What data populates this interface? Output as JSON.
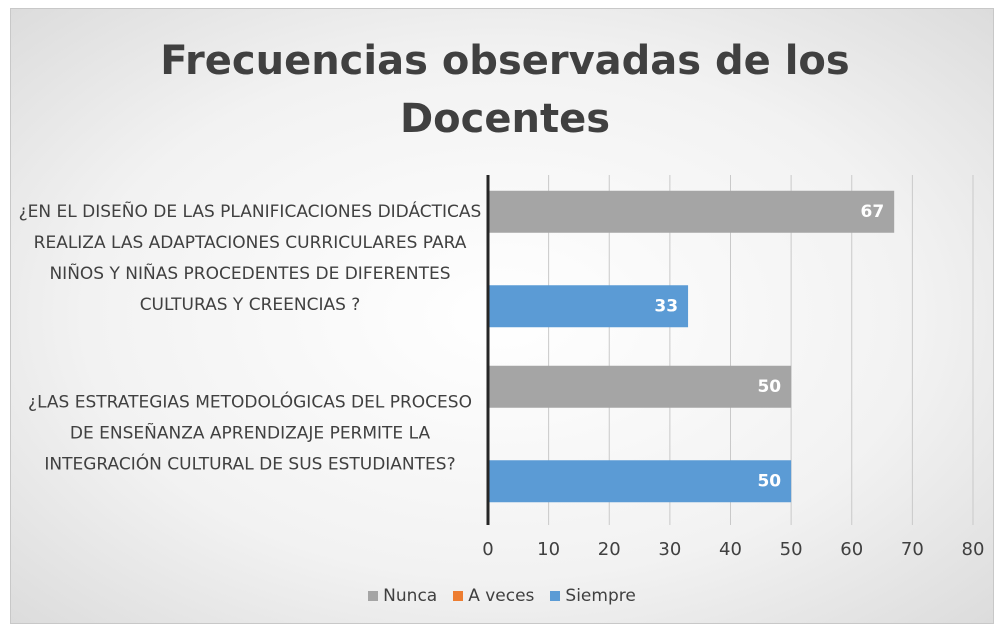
{
  "chart_data": {
    "type": "hbar",
    "title": "Frecuencias observadas de los Docentes",
    "categories": [
      "¿EN EL DISEÑO DE LAS PLANIFICACIONES DIDÁCTICAS REALIZA LAS ADAPTACIONES CURRICULARES PARA NIÑOS Y NIÑAS PROCEDENTES DE DIFERENTES CULTURAS Y CREENCIAS ?",
      "¿LAS ESTRATEGIAS METODOLÓGICAS DEL PROCESO DE ENSEÑANZA APRENDIZAJE PERMITE LA INTEGRACIÓN CULTURAL DE SUS ESTUDIANTES?"
    ],
    "series": [
      {
        "name": "Nunca",
        "color": "#a5a5a5",
        "values": [
          67,
          50
        ]
      },
      {
        "name": "A veces",
        "color": "#ed7d31",
        "values": [
          null,
          null
        ]
      },
      {
        "name": "Siempre",
        "color": "#5b9bd5",
        "values": [
          33,
          50
        ]
      }
    ],
    "xlim": [
      0,
      80
    ],
    "xticks": [
      0,
      10,
      20,
      30,
      40,
      50,
      60,
      70,
      80
    ],
    "grid": true,
    "legend": "bottom"
  }
}
